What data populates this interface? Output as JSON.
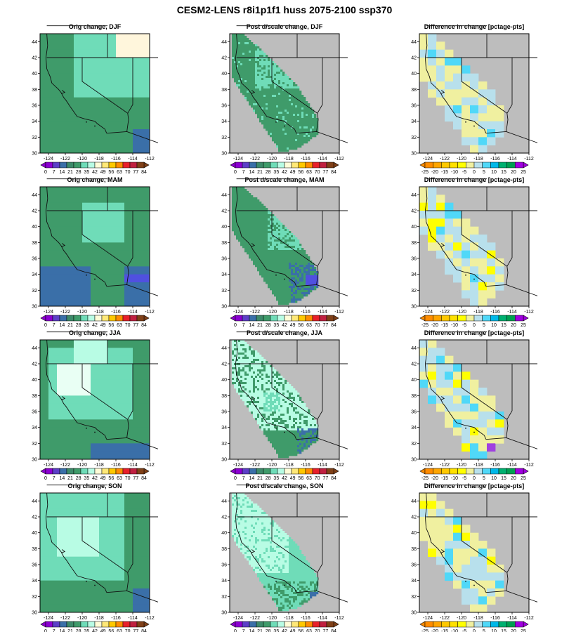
{
  "title": "CESM2-LENS r8i1p1f1 huss 2075-2100 ssp370",
  "x_ticks": [
    "-124",
    "-122",
    "-120",
    "-118",
    "-116",
    "-114",
    "-112"
  ],
  "y_ticks": [
    "30",
    "32",
    "34",
    "36",
    "38",
    "40",
    "42",
    "44"
  ],
  "colorbars": {
    "change": {
      "labels": [
        "0",
        "7",
        "14",
        "21",
        "28",
        "35",
        "42",
        "49",
        "56",
        "63",
        "70",
        "77",
        "84"
      ],
      "colors": [
        "#8b00d1",
        "#5c3fc7",
        "#3a6fa8",
        "#3d8a6a",
        "#3f9b6a",
        "#6fdcb8",
        "#b8fce4",
        "#fffcd8",
        "#ffe878",
        "#ffc800",
        "#ff8c00",
        "#e8202a",
        "#c02040",
        "#804018"
      ]
    },
    "diff": {
      "labels": [
        "-25",
        "-20",
        "-15",
        "-10",
        "-5",
        "0",
        "5",
        "10",
        "15",
        "20",
        "25"
      ],
      "colors": [
        "#ff8c00",
        "#ffa500",
        "#ffc800",
        "#ffe000",
        "#ffff00",
        "#f0f0a0",
        "#b8e0ec",
        "#50d8f8",
        "#00b8e8",
        "#00b070",
        "#00a050",
        "#a000e0"
      ]
    }
  },
  "rows": [
    {
      "season": "DJF",
      "orig_title": "Orig change, DJF",
      "post_title": "Post d/scale change, DJF",
      "diff_title": "Difference in change [pctage-pts]"
    },
    {
      "season": "MAM",
      "orig_title": "Orig change, MAM",
      "post_title": "Post d/scale change, MAM",
      "diff_title": "Difference in change [pctage-pts]"
    },
    {
      "season": "JJA",
      "orig_title": "Orig change, JJA",
      "post_title": "Post d/scale change, JJA",
      "diff_title": "Difference in change [pctage-pts]"
    },
    {
      "season": "SON",
      "orig_title": "Orig change, SON",
      "post_title": "Post d/scale change, SON",
      "diff_title": "Difference in change [pctage-pts]"
    }
  ],
  "map_colors": {
    "land_gray": "#bdbdbd",
    "dark_green": "#3f9b6a",
    "mint": "#6fdcb8",
    "pale_mint": "#b8fce4",
    "steel_blue": "#3a6fa8",
    "blue_purple": "#5050e0",
    "pale_blue": "#b8e0ec",
    "pale_yellow": "#f0f0a0",
    "cyan": "#50d8f8",
    "yellow": "#ffff00"
  }
}
